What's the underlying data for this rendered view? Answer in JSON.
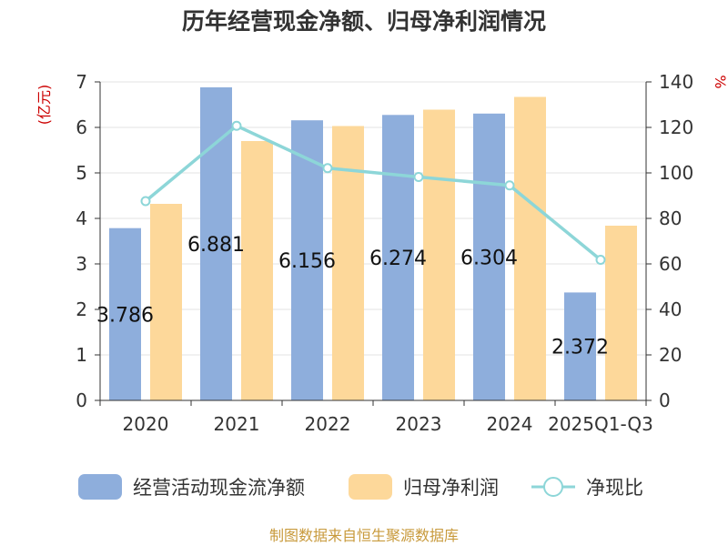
{
  "chart_data": {
    "type": "bar",
    "title": "历年经营现金净额、归母净利润情况",
    "categories": [
      "2020",
      "2021",
      "2022",
      "2023",
      "2024",
      "2025Q1-Q3"
    ],
    "y_left": {
      "label": "(亿元)",
      "min": 0,
      "max": 7,
      "ticks": [
        "0",
        "1",
        "2",
        "3",
        "4",
        "5",
        "6",
        "7"
      ]
    },
    "y_right": {
      "label": "%",
      "min": 0,
      "max": 140,
      "ticks": [
        "0",
        "20",
        "40",
        "60",
        "80",
        "100",
        "120",
        "140"
      ]
    },
    "series": [
      {
        "name": "经营活动现金流净额",
        "type": "bar",
        "axis": "left",
        "values": [
          3.786,
          6.881,
          6.156,
          6.274,
          6.304,
          2.372
        ],
        "labels": [
          "3.786",
          "6.881",
          "6.156",
          "6.274",
          "6.304",
          "2.372"
        ]
      },
      {
        "name": "归母净利润",
        "type": "bar",
        "axis": "left",
        "values": [
          4.32,
          5.7,
          6.03,
          6.39,
          6.67,
          3.84
        ]
      },
      {
        "name": "净现比",
        "type": "line",
        "axis": "right",
        "values": [
          87.6,
          120.7,
          102.1,
          98.2,
          94.5,
          61.8
        ]
      }
    ],
    "colors": {
      "cash": "#8eaedc",
      "profit": "#fdd89a",
      "ratio": "#8dd6d8",
      "unit": "#cc0000",
      "source": "#c89a3c"
    },
    "grid": true,
    "legend_position": "bottom"
  },
  "source_text": "制图数据来自恒生聚源数据库"
}
